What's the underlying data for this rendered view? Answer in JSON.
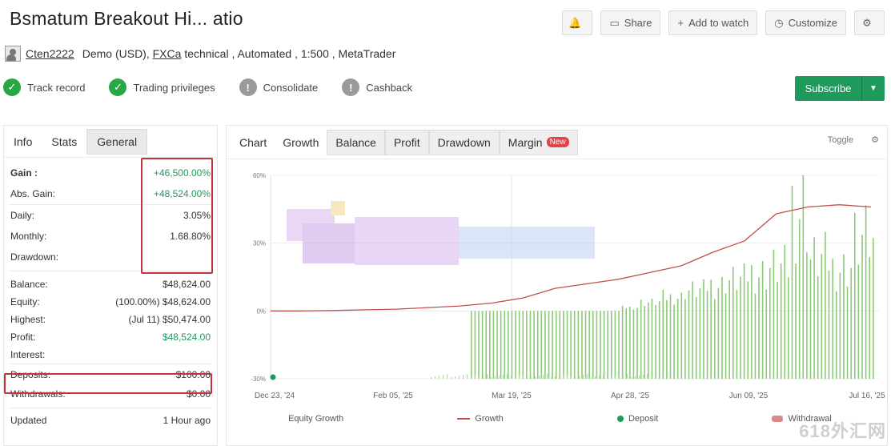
{
  "header": {
    "title": "Bsmatum Breakout Hi... atio",
    "buttons": [
      {
        "label": "",
        "icon": "bell-icon"
      },
      {
        "label": "Share",
        "icon": "share-icon"
      },
      {
        "label": "Add to watch",
        "icon": "plus-icon"
      },
      {
        "label": "Customize",
        "icon": "clock-icon"
      },
      {
        "label": "",
        "icon": "settings-icon"
      }
    ]
  },
  "account": {
    "user": "Cten2222",
    "type": "Demo (USD),",
    "broker": "FXCa",
    "details": "technical , Automated , 1:500 , MetaTrader"
  },
  "features": [
    {
      "label": "Track record",
      "status": "ok"
    },
    {
      "label": "Trading privileges",
      "status": "ok"
    },
    {
      "label": "Consolidate",
      "status": "warn"
    },
    {
      "label": "Cashback",
      "status": "warn"
    }
  ],
  "subscribe": {
    "label": "Subscribe"
  },
  "left_panel": {
    "tabs": [
      "Info",
      "Stats",
      "General"
    ],
    "active_tab": "General",
    "stats": [
      {
        "key": "Gain :",
        "value": "+46,500.00%",
        "green": true,
        "bold": true
      },
      {
        "key": "Abs. Gain:",
        "value": "+48,524.00%",
        "green": true
      },
      {
        "key": "Daily:",
        "value": "3.05%"
      },
      {
        "key": "Monthly:",
        "value": "1.68.80%"
      },
      {
        "key": "Drawdown:",
        "value": ""
      }
    ],
    "balances": [
      {
        "key": "Balance:",
        "value": "$48,624.00"
      },
      {
        "key": "Equity:",
        "value": "(100.00%) $48,624.00"
      },
      {
        "key": "Highest:",
        "value": "(Jul 11) $50,474.00"
      },
      {
        "key": "Profit:",
        "value": "$48,524.00",
        "green": true
      },
      {
        "key": "Interest:",
        "value": ""
      },
      {
        "key": "Deposits:",
        "value": "$100.00"
      },
      {
        "key": "Withdrawals:",
        "value": "$0.00"
      },
      {
        "key": "Updated",
        "value": "1 Hour ago"
      }
    ]
  },
  "chart_panel": {
    "tabs": [
      "Chart",
      "Growth",
      "Balance",
      "Profit",
      "Drawdown",
      "Margin"
    ],
    "active_tab": "Balance",
    "new_badge": "New",
    "tools": [
      "Toggle",
      "settings"
    ]
  },
  "chart_data": {
    "type": "line",
    "y_tick_labels": [
      "60%",
      "30%",
      "0%",
      "-30%"
    ],
    "x_tick_labels": [
      "Dec 23, '24",
      "Feb 05, '25",
      "Mar 19, '25",
      "Apr 28, '25",
      "Jun 09, '25",
      "Jul 16, '25"
    ],
    "series": [
      {
        "name": "Growth",
        "color": "#c0504d",
        "values": [
          0,
          0,
          0.2,
          0.5,
          0.8,
          1.5,
          2.2,
          3.5,
          5.8,
          10,
          12,
          14,
          17,
          20,
          26,
          31,
          43,
          46,
          47,
          46
        ]
      },
      {
        "name": "Equity Growth",
        "color": "#8cc97a",
        "values": [
          0,
          0,
          0,
          0,
          0,
          0,
          0,
          2,
          5,
          8,
          12,
          15,
          18,
          22,
          25,
          60,
          30,
          25,
          40,
          35
        ]
      }
    ],
    "legend": [
      "Equity Growth",
      "Growth",
      "Deposit",
      "Withdrawal"
    ]
  }
}
